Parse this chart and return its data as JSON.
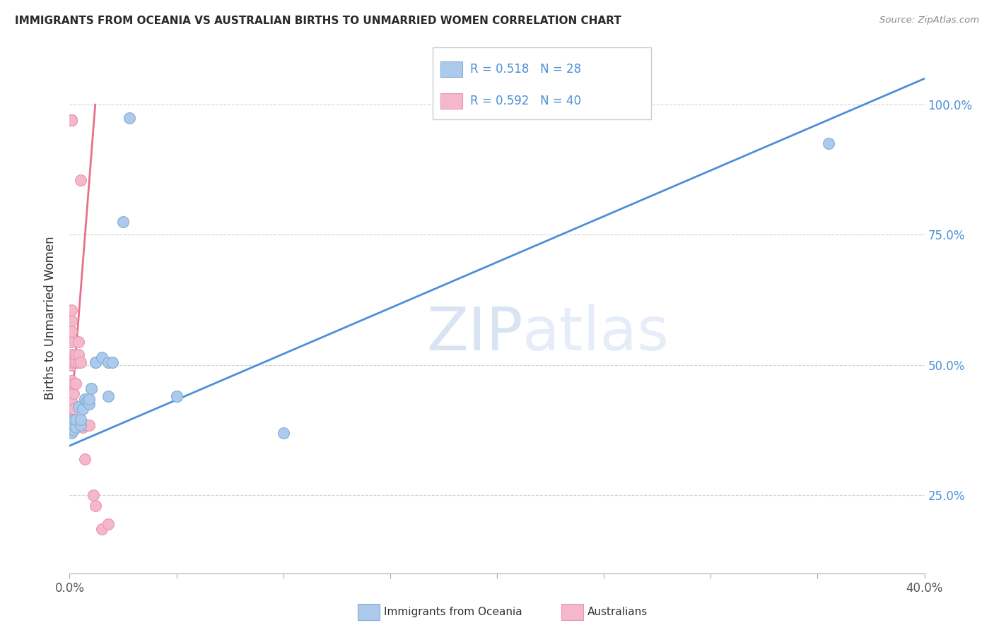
{
  "title": "IMMIGRANTS FROM OCEANIA VS AUSTRALIAN BIRTHS TO UNMARRIED WOMEN CORRELATION CHART",
  "source": "Source: ZipAtlas.com",
  "ylabel": "Births to Unmarried Women",
  "ylabel_right_values": [
    0.25,
    0.5,
    0.75,
    1.0
  ],
  "watermark_zip": "ZIP",
  "watermark_atlas": "atlas",
  "blue_points": [
    [
      0.001,
      0.385
    ],
    [
      0.001,
      0.37
    ],
    [
      0.002,
      0.375
    ],
    [
      0.002,
      0.385
    ],
    [
      0.002,
      0.395
    ],
    [
      0.003,
      0.38
    ],
    [
      0.003,
      0.395
    ],
    [
      0.004,
      0.42
    ],
    [
      0.005,
      0.385
    ],
    [
      0.005,
      0.395
    ],
    [
      0.006,
      0.415
    ],
    [
      0.007,
      0.435
    ],
    [
      0.008,
      0.43
    ],
    [
      0.009,
      0.425
    ],
    [
      0.009,
      0.435
    ],
    [
      0.01,
      0.455
    ],
    [
      0.012,
      0.505
    ],
    [
      0.012,
      0.505
    ],
    [
      0.015,
      0.515
    ],
    [
      0.018,
      0.505
    ],
    [
      0.018,
      0.44
    ],
    [
      0.02,
      0.505
    ],
    [
      0.025,
      0.775
    ],
    [
      0.028,
      0.975
    ],
    [
      0.05,
      0.44
    ],
    [
      0.05,
      0.44
    ],
    [
      0.1,
      0.37
    ],
    [
      0.355,
      0.925
    ]
  ],
  "pink_points": [
    [
      0.001,
      0.385
    ],
    [
      0.001,
      0.395
    ],
    [
      0.001,
      0.405
    ],
    [
      0.001,
      0.415
    ],
    [
      0.001,
      0.43
    ],
    [
      0.001,
      0.45
    ],
    [
      0.001,
      0.47
    ],
    [
      0.001,
      0.5
    ],
    [
      0.001,
      0.52
    ],
    [
      0.001,
      0.545
    ],
    [
      0.001,
      0.565
    ],
    [
      0.001,
      0.585
    ],
    [
      0.001,
      0.605
    ],
    [
      0.001,
      0.97
    ],
    [
      0.001,
      0.97
    ],
    [
      0.001,
      0.97
    ],
    [
      0.001,
      0.97
    ],
    [
      0.002,
      0.385
    ],
    [
      0.002,
      0.395
    ],
    [
      0.002,
      0.415
    ],
    [
      0.002,
      0.445
    ],
    [
      0.002,
      0.465
    ],
    [
      0.002,
      0.505
    ],
    [
      0.003,
      0.465
    ],
    [
      0.003,
      0.505
    ],
    [
      0.003,
      0.52
    ],
    [
      0.004,
      0.505
    ],
    [
      0.004,
      0.52
    ],
    [
      0.004,
      0.545
    ],
    [
      0.005,
      0.505
    ],
    [
      0.005,
      0.855
    ],
    [
      0.006,
      0.38
    ],
    [
      0.007,
      0.32
    ],
    [
      0.008,
      0.385
    ],
    [
      0.009,
      0.385
    ],
    [
      0.01,
      0.455
    ],
    [
      0.011,
      0.25
    ],
    [
      0.012,
      0.23
    ],
    [
      0.015,
      0.185
    ],
    [
      0.018,
      0.195
    ]
  ],
  "blue_line_x": [
    0.0,
    0.4
  ],
  "blue_line_y": [
    0.345,
    1.05
  ],
  "pink_line_x": [
    0.0,
    0.012
  ],
  "pink_line_y": [
    0.37,
    1.0
  ],
  "xlim": [
    0.0,
    0.4
  ],
  "ylim": [
    0.1,
    1.08
  ],
  "xtick_positions": [
    0.0,
    0.05,
    0.1,
    0.15,
    0.2,
    0.25,
    0.3,
    0.35,
    0.4
  ],
  "background_color": "#ffffff",
  "grid_color": "#d3d3d3",
  "blue_dot_color": "#adc9eb",
  "blue_dot_edge": "#82afd4",
  "pink_dot_color": "#f5b8cb",
  "pink_dot_edge": "#e896b0",
  "blue_line_color": "#4a90d9",
  "pink_line_color": "#e8708a",
  "right_axis_color": "#4a90d9",
  "title_color": "#2a2a2a",
  "source_color": "#888888",
  "ylabel_color": "#333333"
}
